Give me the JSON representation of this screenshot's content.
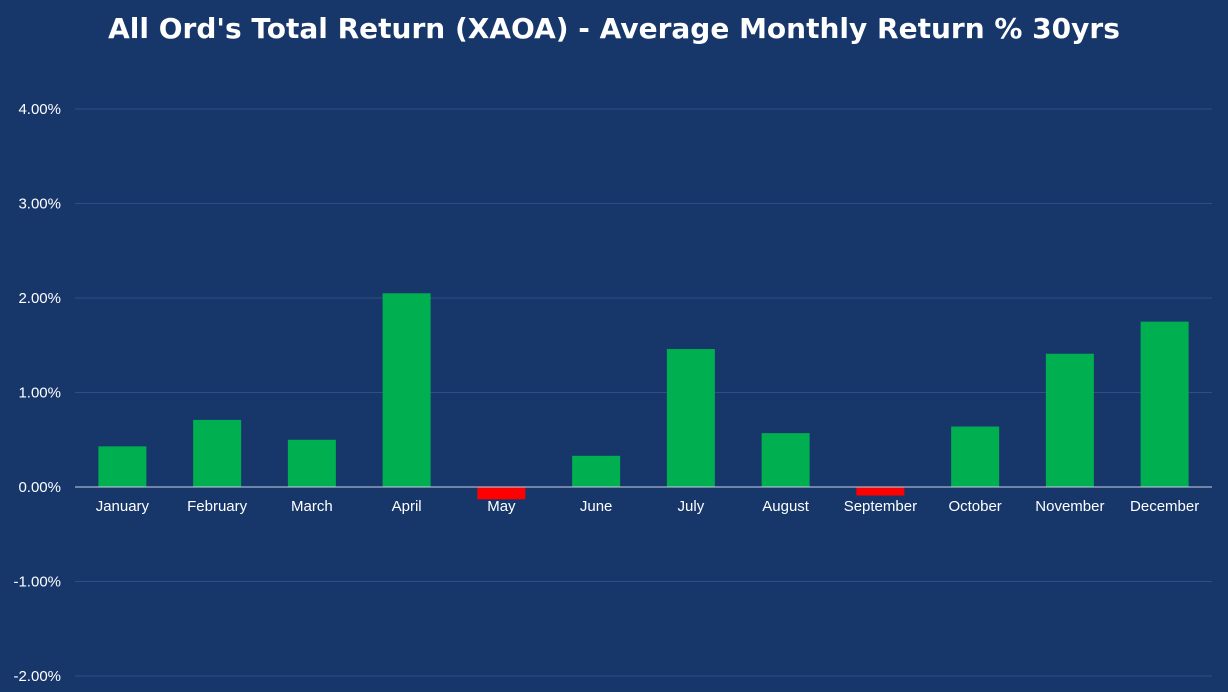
{
  "chart_data": {
    "type": "bar",
    "title": "All Ord's Total Return (XAOA) - Average Monthly Return % 30yrs",
    "xlabel": "",
    "ylabel": "",
    "categories": [
      "January",
      "February",
      "March",
      "April",
      "May",
      "June",
      "July",
      "August",
      "September",
      "October",
      "November",
      "December"
    ],
    "values": [
      0.43,
      0.71,
      0.5,
      2.05,
      -0.13,
      0.33,
      1.46,
      0.57,
      -0.09,
      0.64,
      1.41,
      1.75
    ],
    "ylim": [
      -2,
      4
    ],
    "yticks": [
      4,
      3,
      2,
      1,
      0,
      -1,
      -2
    ],
    "ytick_labels": [
      "4.00%",
      "3.00%",
      "2.00%",
      "1.00%",
      "0.00%",
      "-1.00%",
      "-2.00%"
    ],
    "grid": true,
    "legend": "none",
    "colors": {
      "background": "#17376b",
      "positive": "#00b050",
      "negative": "#ff0000",
      "gridline": "#2e4f85",
      "zeroline": "#c8d2e2",
      "text": "#ffffff"
    }
  }
}
